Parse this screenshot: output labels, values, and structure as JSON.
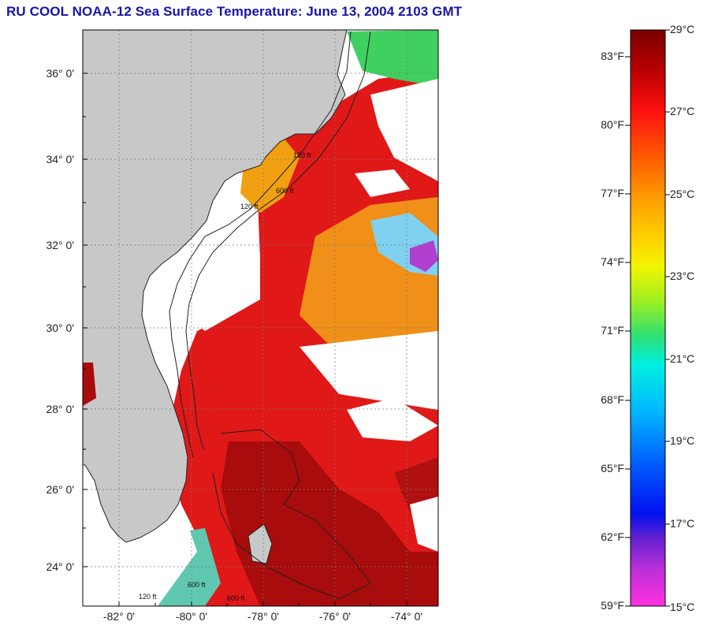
{
  "title": "RU COOL  NOAA-12  Sea Surface Temperature:  June 13, 2004 2103 GMT",
  "map": {
    "latitude_labels": [
      "36° 0'",
      "34° 0'",
      "32° 0'",
      "30° 0'",
      "28° 0'",
      "26° 0'",
      "24° 0'"
    ],
    "longitude_labels": [
      "-82° 0'",
      "-80° 0'",
      "-78° 0'",
      "-76° 0'",
      "-74° 0'"
    ],
    "contour_labels": [
      "120 ft",
      "600 ft",
      "120 ft",
      "600 ft",
      "120 ft",
      "600 ft"
    ],
    "colors": {
      "land": "#c8c8c8",
      "cloud": "#ffffff",
      "warm_water": "#e01818",
      "hot_water": "#a80c0c",
      "mid_water": "#f0a010",
      "cool_water": "#40d060"
    }
  },
  "colorbar": {
    "fahrenheit_labels": [
      "83°F",
      "80°F",
      "77°F",
      "74°F",
      "71°F",
      "68°F",
      "65°F",
      "62°F",
      "59°F"
    ],
    "celsius_labels": [
      "29°C",
      "27°C",
      "25°C",
      "23°C",
      "21°C",
      "19°C",
      "17°C",
      "15°C"
    ],
    "range_c": [
      15,
      29
    ],
    "range_f": [
      59,
      84.2
    ]
  }
}
